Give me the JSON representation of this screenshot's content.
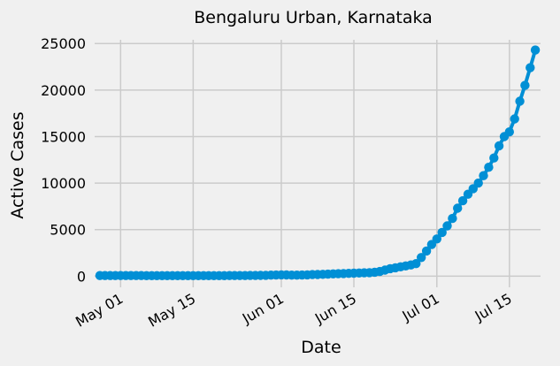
{
  "chart_data": {
    "type": "line",
    "title": "Bengaluru Urban, Karnataka",
    "xlabel": "Date",
    "ylabel": "Active Cases",
    "x_range": [
      "2020-04-26",
      "2020-07-21"
    ],
    "ylim": [
      -1200,
      25400
    ],
    "x_ticks": [
      {
        "date": "2020-05-01",
        "label": "May 01"
      },
      {
        "date": "2020-05-15",
        "label": "May 15"
      },
      {
        "date": "2020-06-01",
        "label": "Jun 01"
      },
      {
        "date": "2020-06-15",
        "label": "Jun 15"
      },
      {
        "date": "2020-07-01",
        "label": "Jul 01"
      },
      {
        "date": "2020-07-15",
        "label": "Jul 15"
      }
    ],
    "y_ticks": [
      0,
      5000,
      10000,
      15000,
      20000,
      25000
    ],
    "grid": true,
    "color": "#008fd5",
    "series": [
      {
        "x": [
          "2020-04-27",
          "2020-04-28",
          "2020-04-29",
          "2020-04-30",
          "2020-05-01",
          "2020-05-02",
          "2020-05-03",
          "2020-05-04",
          "2020-05-05",
          "2020-05-06",
          "2020-05-07",
          "2020-05-08",
          "2020-05-09",
          "2020-05-10",
          "2020-05-11",
          "2020-05-12",
          "2020-05-13",
          "2020-05-14",
          "2020-05-15",
          "2020-05-16",
          "2020-05-17",
          "2020-05-18",
          "2020-05-19",
          "2020-05-20",
          "2020-05-21",
          "2020-05-22",
          "2020-05-23",
          "2020-05-24",
          "2020-05-25",
          "2020-05-26",
          "2020-05-27",
          "2020-05-28",
          "2020-05-29",
          "2020-05-30",
          "2020-05-31",
          "2020-06-01",
          "2020-06-02",
          "2020-06-03",
          "2020-06-04",
          "2020-06-05",
          "2020-06-06",
          "2020-06-07",
          "2020-06-08",
          "2020-06-09",
          "2020-06-10",
          "2020-06-11",
          "2020-06-12",
          "2020-06-13",
          "2020-06-14",
          "2020-06-15",
          "2020-06-16",
          "2020-06-17",
          "2020-06-18",
          "2020-06-19",
          "2020-06-20",
          "2020-06-21",
          "2020-06-22",
          "2020-06-23",
          "2020-06-24",
          "2020-06-25",
          "2020-06-26",
          "2020-06-27",
          "2020-06-28",
          "2020-06-29",
          "2020-06-30",
          "2020-07-01",
          "2020-07-02",
          "2020-07-03",
          "2020-07-04",
          "2020-07-05",
          "2020-07-06",
          "2020-07-07",
          "2020-07-08",
          "2020-07-09",
          "2020-07-10",
          "2020-07-11",
          "2020-07-12",
          "2020-07-13",
          "2020-07-14",
          "2020-07-15",
          "2020-07-16",
          "2020-07-17",
          "2020-07-18",
          "2020-07-19"
        ],
        "y": [
          60,
          62,
          63,
          63,
          62,
          61,
          60,
          60,
          59,
          58,
          58,
          58,
          57,
          57,
          56,
          56,
          56,
          55,
          55,
          55,
          56,
          57,
          57,
          58,
          58,
          60,
          62,
          65,
          68,
          72,
          75,
          80,
          95,
          115,
          125,
          140,
          130,
          115,
          115,
          120,
          140,
          170,
          180,
          200,
          220,
          240,
          260,
          280,
          300,
          320,
          340,
          360,
          380,
          420,
          500,
          650,
          800,
          900,
          1000,
          1100,
          1200,
          1350,
          2000,
          2700,
          3400,
          4000,
          4700,
          5400,
          6200,
          7300,
          8100,
          8800,
          9400,
          10000,
          10800,
          11700,
          12700,
          14000,
          15000,
          15500,
          16900,
          18800,
          20500,
          22400
        ]
      }
    ],
    "last_point": {
      "x": "2020-07-20",
      "y": 24300
    }
  }
}
